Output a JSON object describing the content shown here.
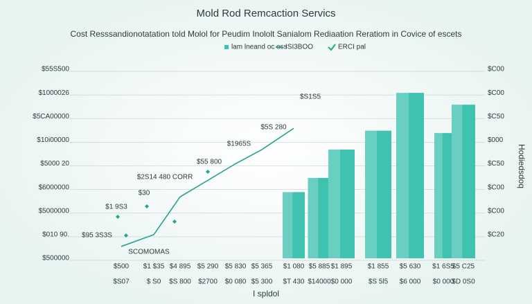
{
  "chart_data": {
    "type": "bar",
    "title": "Mold Rod Remcaction Servics",
    "subtitle": "Cost Resssandionotatation told Molol for Peudim Inololt Sanialom Rediaation Reratiom in Covice of escets",
    "x_label": "I spldol",
    "y2_label": "Hodiedsdoq",
    "categories": [
      "$500",
      "$1 $35",
      "$4 895",
      "$5 290",
      "$5 830",
      "$5 365",
      "$1 080",
      "$5 885",
      "$1 895",
      "$1 855",
      "$5 630",
      "$1 6S5",
      "$5 C25"
    ],
    "secondary_labels": [
      "$S07",
      "$ S0",
      "$S 800",
      "$2700",
      "$0 080",
      "$5 300",
      "$T 430",
      "$14000",
      "$0 000",
      "$S 5l5",
      "$6 000",
      "$0 000",
      "$D 0S0"
    ],
    "series": [
      {
        "name": "lam lneand oc oss",
        "color": "#3fc2b0",
        "values": [
          null,
          null,
          null,
          null,
          null,
          null,
          2.8,
          3.4,
          4.6,
          5.4,
          7.0,
          5.3,
          6.5
        ]
      },
      {
        "name": "ISI3BOO",
        "color": "#27a393",
        "values": [
          0.5,
          1.0,
          2.6,
          3.3,
          4.0,
          4.6,
          5.5,
          null,
          null,
          null,
          null,
          null,
          null
        ]
      }
    ],
    "legend_extra": "ERCI pal",
    "ylim": [
      0,
      8
    ],
    "yticks": [
      {
        "value": 0,
        "label": "$500000"
      },
      {
        "value": 1,
        "label": "$010 90."
      },
      {
        "value": 2,
        "label": "$5000000"
      },
      {
        "value": 3,
        "label": "$6000000"
      },
      {
        "value": 4,
        "label": "$5000 20"
      },
      {
        "value": 5,
        "label": "$10i00000"
      },
      {
        "value": 6,
        "label": "$5CA00000"
      },
      {
        "value": 7,
        "label": "$1000026"
      },
      {
        "value": 8,
        "label": "$55S500"
      }
    ],
    "y2lim": [
      0,
      8
    ],
    "y2ticks": [
      {
        "value": 1,
        "label": "$C20"
      },
      {
        "value": 2,
        "label": "$C00"
      },
      {
        "value": 3,
        "label": "$C00"
      },
      {
        "value": 4,
        "label": "$C50"
      },
      {
        "value": 5,
        "label": "$000"
      },
      {
        "value": 6,
        "label": "$C50"
      },
      {
        "value": 7,
        "label": "$C00"
      },
      {
        "value": 8,
        "label": "$C00"
      }
    ],
    "annotations": [
      "$S1S5",
      "$5S 280",
      "$1965S",
      "$55 800",
      "$2S14 480 CORR",
      "$30",
      "$1 9S3",
      "$95 3S3S",
      "SCOMOMAS"
    ],
    "grid": true
  }
}
